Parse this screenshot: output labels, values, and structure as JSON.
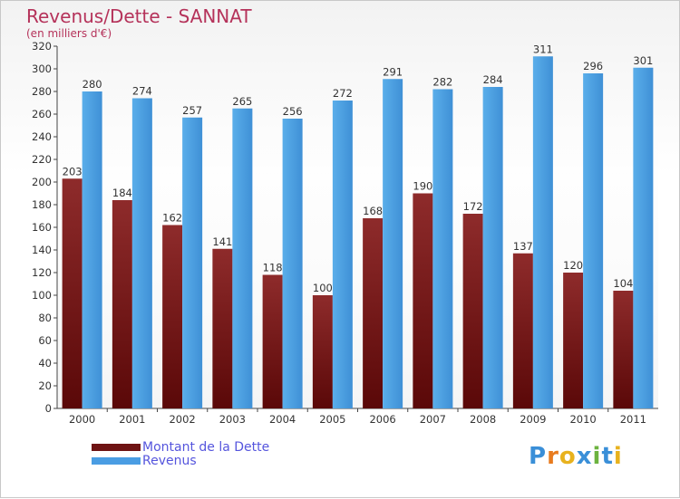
{
  "title": "Revenus/Dette - SANNAT",
  "subtitle": "(en milliers d'€)",
  "colors": {
    "debt": "#7a1a1a",
    "revenue": "#4a9de3",
    "title": "#b5325a",
    "legend_text": "#5555dd"
  },
  "legend": {
    "debt_label": "Montant de la Dette",
    "revenue_label": "Revenus"
  },
  "logo": {
    "text": "Proxiti"
  },
  "chart_data": {
    "type": "bar",
    "categories": [
      "2000",
      "2001",
      "2002",
      "2003",
      "2004",
      "2005",
      "2006",
      "2007",
      "2008",
      "2009",
      "2010",
      "2011"
    ],
    "series": [
      {
        "name": "Montant de la Dette",
        "values": [
          203,
          184,
          162,
          141,
          118,
          100,
          168,
          190,
          172,
          137,
          120,
          104
        ]
      },
      {
        "name": "Revenus",
        "values": [
          280,
          274,
          257,
          265,
          256,
          272,
          291,
          282,
          284,
          311,
          296,
          301
        ]
      }
    ],
    "ylim": [
      0,
      320
    ],
    "yticks": [
      0,
      20,
      40,
      60,
      80,
      100,
      120,
      140,
      160,
      180,
      200,
      220,
      240,
      260,
      280,
      300,
      320
    ],
    "grid": false,
    "legend_position": "bottom-left"
  }
}
